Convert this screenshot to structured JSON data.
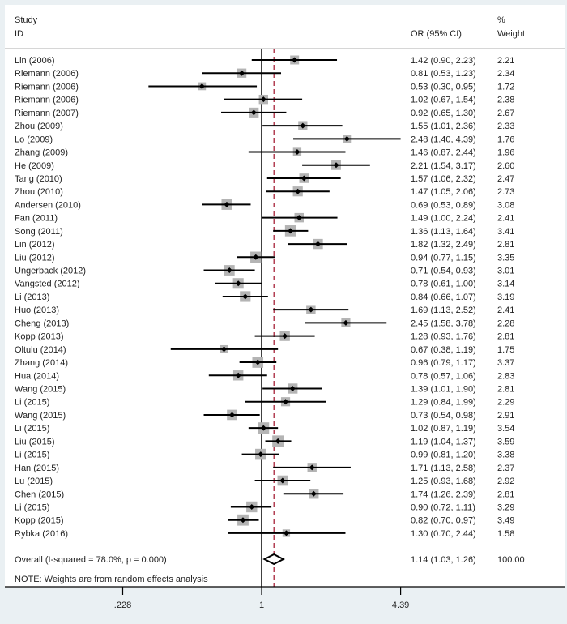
{
  "chart_data": {
    "type": "forest",
    "x_scale": "log",
    "xlim": [
      0.228,
      4.39
    ],
    "x_ticks": [
      ".228",
      "1",
      "4.39"
    ],
    "null_line": 1,
    "overall_line": 1.14,
    "headers": {
      "study_line1": "Study",
      "study_line2": "ID",
      "or": "OR (95% CI)",
      "weight_line1": "%",
      "weight_line2": "Weight"
    },
    "studies": [
      {
        "id": "Lin (2006)",
        "or": 1.42,
        "lo": 0.9,
        "hi": 2.23,
        "or_text": "1.42 (0.90, 2.23)",
        "weight": "2.21"
      },
      {
        "id": "Riemann (2006)",
        "or": 0.81,
        "lo": 0.53,
        "hi": 1.23,
        "or_text": "0.81 (0.53, 1.23)",
        "weight": "2.34"
      },
      {
        "id": "Riemann (2006)",
        "or": 0.53,
        "lo": 0.3,
        "hi": 0.95,
        "or_text": "0.53 (0.30, 0.95)",
        "weight": "1.72"
      },
      {
        "id": "Riemann (2006)",
        "or": 1.02,
        "lo": 0.67,
        "hi": 1.54,
        "or_text": "1.02 (0.67, 1.54)",
        "weight": "2.38"
      },
      {
        "id": "Riemann (2007)",
        "or": 0.92,
        "lo": 0.65,
        "hi": 1.3,
        "or_text": "0.92 (0.65, 1.30)",
        "weight": "2.67"
      },
      {
        "id": "Zhou (2009)",
        "or": 1.55,
        "lo": 1.01,
        "hi": 2.36,
        "or_text": "1.55 (1.01, 2.36)",
        "weight": "2.33"
      },
      {
        "id": "Lo (2009)",
        "or": 2.48,
        "lo": 1.4,
        "hi": 4.39,
        "or_text": "2.48 (1.40, 4.39)",
        "weight": "1.76"
      },
      {
        "id": "Zhang (2009)",
        "or": 1.46,
        "lo": 0.87,
        "hi": 2.44,
        "or_text": "1.46 (0.87, 2.44)",
        "weight": "1.96"
      },
      {
        "id": "He (2009)",
        "or": 2.21,
        "lo": 1.54,
        "hi": 3.17,
        "or_text": "2.21 (1.54, 3.17)",
        "weight": "2.60"
      },
      {
        "id": "Tang (2010)",
        "or": 1.57,
        "lo": 1.06,
        "hi": 2.32,
        "or_text": "1.57 (1.06, 2.32)",
        "weight": "2.47"
      },
      {
        "id": "Zhou (2010)",
        "or": 1.47,
        "lo": 1.05,
        "hi": 2.06,
        "or_text": "1.47 (1.05, 2.06)",
        "weight": "2.73"
      },
      {
        "id": "Andersen (2010)",
        "or": 0.69,
        "lo": 0.53,
        "hi": 0.89,
        "or_text": "0.69 (0.53, 0.89)",
        "weight": "3.08"
      },
      {
        "id": "Fan (2011)",
        "or": 1.49,
        "lo": 1.0,
        "hi": 2.24,
        "or_text": "1.49 (1.00, 2.24)",
        "weight": "2.41"
      },
      {
        "id": "Song (2011)",
        "or": 1.36,
        "lo": 1.13,
        "hi": 1.64,
        "or_text": "1.36 (1.13, 1.64)",
        "weight": "3.41"
      },
      {
        "id": "Lin (2012)",
        "or": 1.82,
        "lo": 1.32,
        "hi": 2.49,
        "or_text": "1.82 (1.32, 2.49)",
        "weight": "2.81"
      },
      {
        "id": "Liu (2012)",
        "or": 0.94,
        "lo": 0.77,
        "hi": 1.15,
        "or_text": "0.94 (0.77, 1.15)",
        "weight": "3.35"
      },
      {
        "id": "Ungerback (2012)",
        "or": 0.71,
        "lo": 0.54,
        "hi": 0.93,
        "or_text": "0.71 (0.54, 0.93)",
        "weight": "3.01"
      },
      {
        "id": "Vangsted (2012)",
        "or": 0.78,
        "lo": 0.61,
        "hi": 1.0,
        "or_text": "0.78 (0.61, 1.00)",
        "weight": "3.14"
      },
      {
        "id": "Li (2013)",
        "or": 0.84,
        "lo": 0.66,
        "hi": 1.07,
        "or_text": "0.84 (0.66, 1.07)",
        "weight": "3.19"
      },
      {
        "id": "Huo (2013)",
        "or": 1.69,
        "lo": 1.13,
        "hi": 2.52,
        "or_text": "1.69 (1.13, 2.52)",
        "weight": "2.41"
      },
      {
        "id": "Cheng (2013)",
        "or": 2.45,
        "lo": 1.58,
        "hi": 3.78,
        "or_text": "2.45 (1.58, 3.78)",
        "weight": "2.28"
      },
      {
        "id": "Kopp (2013)",
        "or": 1.28,
        "lo": 0.93,
        "hi": 1.76,
        "or_text": "1.28 (0.93, 1.76)",
        "weight": "2.81"
      },
      {
        "id": "Oltulu (2014)",
        "or": 0.67,
        "lo": 0.38,
        "hi": 1.19,
        "or_text": "0.67 (0.38, 1.19)",
        "weight": "1.75"
      },
      {
        "id": "Zhang (2014)",
        "or": 0.96,
        "lo": 0.79,
        "hi": 1.17,
        "or_text": "0.96 (0.79, 1.17)",
        "weight": "3.37"
      },
      {
        "id": "Hua (2014)",
        "or": 0.78,
        "lo": 0.57,
        "hi": 1.06,
        "or_text": "0.78 (0.57, 1.06)",
        "weight": "2.83"
      },
      {
        "id": "Wang (2015)",
        "or": 1.39,
        "lo": 1.01,
        "hi": 1.9,
        "or_text": "1.39 (1.01, 1.90)",
        "weight": "2.81"
      },
      {
        "id": "Li (2015)",
        "or": 1.29,
        "lo": 0.84,
        "hi": 1.99,
        "or_text": "1.29 (0.84, 1.99)",
        "weight": "2.29"
      },
      {
        "id": "Wang (2015)",
        "or": 0.73,
        "lo": 0.54,
        "hi": 0.98,
        "or_text": "0.73 (0.54, 0.98)",
        "weight": "2.91"
      },
      {
        "id": "Li (2015)",
        "or": 1.02,
        "lo": 0.87,
        "hi": 1.19,
        "or_text": "1.02 (0.87, 1.19)",
        "weight": "3.54"
      },
      {
        "id": "Liu (2015)",
        "or": 1.19,
        "lo": 1.04,
        "hi": 1.37,
        "or_text": "1.19 (1.04, 1.37)",
        "weight": "3.59"
      },
      {
        "id": "Li (2015)",
        "or": 0.99,
        "lo": 0.81,
        "hi": 1.2,
        "or_text": "0.99 (0.81, 1.20)",
        "weight": "3.38"
      },
      {
        "id": "Han (2015)",
        "or": 1.71,
        "lo": 1.13,
        "hi": 2.58,
        "or_text": "1.71 (1.13, 2.58)",
        "weight": "2.37"
      },
      {
        "id": "Lu (2015)",
        "or": 1.25,
        "lo": 0.93,
        "hi": 1.68,
        "or_text": "1.25 (0.93, 1.68)",
        "weight": "2.92"
      },
      {
        "id": "Chen (2015)",
        "or": 1.74,
        "lo": 1.26,
        "hi": 2.39,
        "or_text": "1.74 (1.26, 2.39)",
        "weight": "2.81"
      },
      {
        "id": "Li (2015)",
        "or": 0.9,
        "lo": 0.72,
        "hi": 1.11,
        "or_text": "0.90 (0.72, 1.11)",
        "weight": "3.29"
      },
      {
        "id": "Kopp (2015)",
        "or": 0.82,
        "lo": 0.7,
        "hi": 0.97,
        "or_text": "0.82 (0.70, 0.97)",
        "weight": "3.49"
      },
      {
        "id": "Rybka (2016)",
        "or": 1.3,
        "lo": 0.7,
        "hi": 2.44,
        "or_text": "1.30 (0.70, 2.44)",
        "weight": "1.58"
      }
    ],
    "overall": {
      "label": "Overall  (I-squared = 78.0%, p = 0.000)",
      "or": 1.14,
      "lo": 1.03,
      "hi": 1.26,
      "or_text": "1.14 (1.03, 1.26)",
      "weight": "100.00"
    },
    "note": "NOTE: Weights are from random effects analysis",
    "colors": {
      "background": "#eaf0f3",
      "box": "#b4b4b4",
      "point": "#000000",
      "ci": "#000000",
      "overall_line": "#a0102a"
    }
  }
}
